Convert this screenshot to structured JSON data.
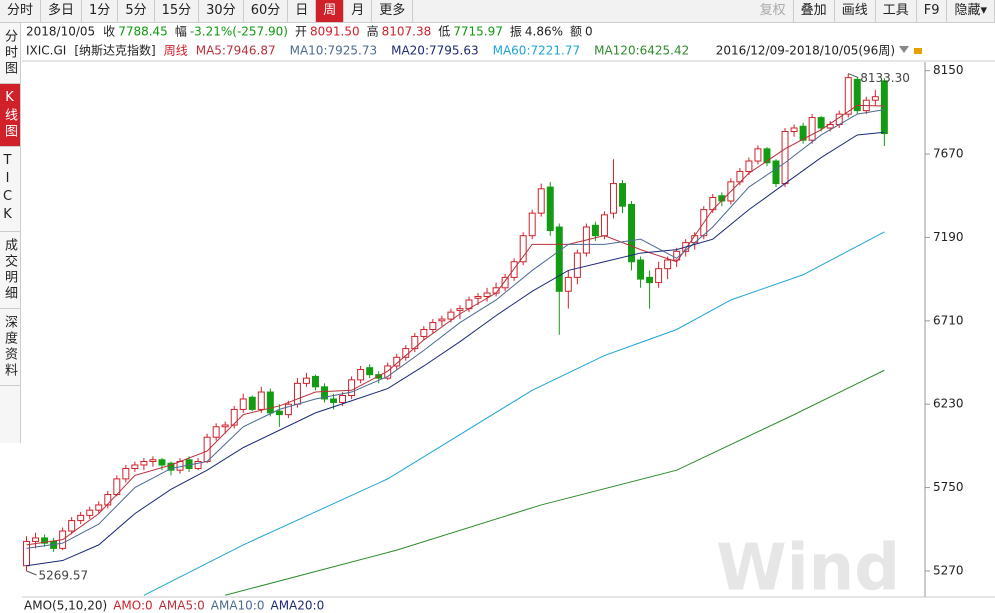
{
  "toolbar": {
    "left": [
      "分时",
      "多日",
      "1分",
      "5分",
      "15分",
      "30分",
      "60分",
      "日",
      "周",
      "月",
      "更多"
    ],
    "active": 8,
    "right": [
      "复权",
      "叠加",
      "画线",
      "工具",
      "F9",
      "隐藏▾"
    ],
    "disabled": 0
  },
  "sidebar": {
    "items": [
      "分时图",
      "K线图",
      "TICK",
      "成交明细",
      "深度资料"
    ],
    "active": 1
  },
  "quote": {
    "date": "2018/10/05",
    "items": [
      {
        "label": "收",
        "value": "7788.45",
        "color": "#0e9a0e"
      },
      {
        "label": "幅",
        "value": "-3.21%(-257.90)",
        "color": "#0e9a0e"
      },
      {
        "label": "开",
        "value": "8091.50",
        "color": "#d0202a"
      },
      {
        "label": "高",
        "value": "8107.38",
        "color": "#d0202a"
      },
      {
        "label": "低",
        "value": "7715.97",
        "color": "#0e9a0e"
      },
      {
        "label": "振",
        "value": "4.86%",
        "color": "#222222"
      },
      {
        "label": "额",
        "value": "0",
        "color": "#222222"
      }
    ]
  },
  "chart_data": {
    "type": "candlestick",
    "symbol": "IXIC.GI",
    "name": "[纳斯达克指数]",
    "period": "周线",
    "range": "2016/12/09-2018/10/05(96周)",
    "up_color": "#d0202a",
    "down_color": "#139c13",
    "xlim": [
      -0.5,
      99.5
    ],
    "ylim": [
      5120,
      8200
    ],
    "yticks": [
      8150,
      7670,
      7190,
      6710,
      6230,
      5750,
      5270
    ],
    "ohlc": [
      [
        5300,
        5470,
        5269.57,
        5440
      ],
      [
        5440,
        5490,
        5400,
        5460
      ],
      [
        5460,
        5480,
        5410,
        5430
      ],
      [
        5440,
        5460,
        5380,
        5400
      ],
      [
        5400,
        5520,
        5390,
        5500
      ],
      [
        5500,
        5580,
        5480,
        5560
      ],
      [
        5560,
        5610,
        5540,
        5590
      ],
      [
        5590,
        5640,
        5570,
        5620
      ],
      [
        5620,
        5670,
        5600,
        5650
      ],
      [
        5650,
        5730,
        5630,
        5710
      ],
      [
        5710,
        5820,
        5700,
        5800
      ],
      [
        5800,
        5880,
        5780,
        5860
      ],
      [
        5860,
        5900,
        5840,
        5880
      ],
      [
        5880,
        5920,
        5850,
        5900
      ],
      [
        5900,
        5930,
        5870,
        5910
      ],
      [
        5910,
        5920,
        5850,
        5880
      ],
      [
        5890,
        5900,
        5820,
        5850
      ],
      [
        5850,
        5920,
        5830,
        5900
      ],
      [
        5910,
        5930,
        5840,
        5860
      ],
      [
        5860,
        5920,
        5850,
        5900
      ],
      [
        5900,
        6060,
        5890,
        6040
      ],
      [
        6040,
        6120,
        6020,
        6100
      ],
      [
        6100,
        6130,
        6060,
        6110
      ],
      [
        6110,
        6220,
        6090,
        6200
      ],
      [
        6200,
        6290,
        6180,
        6260
      ],
      [
        6270,
        6280,
        6190,
        6200
      ],
      [
        6200,
        6330,
        6180,
        6300
      ],
      [
        6300,
        6320,
        6160,
        6180
      ],
      [
        6190,
        6230,
        6100,
        6170
      ],
      [
        6170,
        6250,
        6150,
        6230
      ],
      [
        6230,
        6380,
        6210,
        6350
      ],
      [
        6350,
        6410,
        6330,
        6380
      ],
      [
        6390,
        6400,
        6310,
        6330
      ],
      [
        6330,
        6350,
        6240,
        6260
      ],
      [
        6260,
        6290,
        6200,
        6240
      ],
      [
        6240,
        6300,
        6220,
        6280
      ],
      [
        6280,
        6390,
        6260,
        6370
      ],
      [
        6370,
        6450,
        6350,
        6430
      ],
      [
        6440,
        6460,
        6380,
        6400
      ],
      [
        6400,
        6420,
        6350,
        6380
      ],
      [
        6380,
        6470,
        6370,
        6450
      ],
      [
        6450,
        6520,
        6430,
        6500
      ],
      [
        6500,
        6570,
        6480,
        6550
      ],
      [
        6550,
        6640,
        6530,
        6620
      ],
      [
        6620,
        6680,
        6600,
        6660
      ],
      [
        6660,
        6720,
        6640,
        6700
      ],
      [
        6710,
        6740,
        6680,
        6720
      ],
      [
        6720,
        6780,
        6700,
        6760
      ],
      [
        6770,
        6800,
        6720,
        6780
      ],
      [
        6780,
        6850,
        6760,
        6830
      ],
      [
        6840,
        6870,
        6800,
        6850
      ],
      [
        6850,
        6900,
        6820,
        6870
      ],
      [
        6870,
        6930,
        6850,
        6900
      ],
      [
        6900,
        6980,
        6880,
        6960
      ],
      [
        6960,
        7070,
        6940,
        7050
      ],
      [
        7050,
        7220,
        7030,
        7200
      ],
      [
        7200,
        7350,
        7180,
        7330
      ],
      [
        7330,
        7500,
        7310,
        7470
      ],
      [
        7480,
        7510,
        7200,
        7230
      ],
      [
        7250,
        7270,
        6630,
        6880
      ],
      [
        6880,
        7000,
        6780,
        6960
      ],
      [
        6960,
        7120,
        6920,
        7100
      ],
      [
        7100,
        7270,
        7080,
        7250
      ],
      [
        7260,
        7280,
        7170,
        7200
      ],
      [
        7200,
        7340,
        7180,
        7320
      ],
      [
        7330,
        7640,
        7300,
        7500
      ],
      [
        7500,
        7520,
        7330,
        7370
      ],
      [
        7380,
        7400,
        7000,
        7050
      ],
      [
        7060,
        7080,
        6900,
        6950
      ],
      [
        6960,
        7000,
        6780,
        6930
      ],
      [
        6930,
        7050,
        6900,
        7010
      ],
      [
        7010,
        7080,
        6950,
        7060
      ],
      [
        7060,
        7130,
        7020,
        7110
      ],
      [
        7110,
        7180,
        7080,
        7160
      ],
      [
        7160,
        7220,
        7120,
        7200
      ],
      [
        7200,
        7370,
        7180,
        7350
      ],
      [
        7350,
        7440,
        7330,
        7420
      ],
      [
        7430,
        7450,
        7370,
        7400
      ],
      [
        7400,
        7530,
        7380,
        7510
      ],
      [
        7510,
        7590,
        7490,
        7570
      ],
      [
        7570,
        7650,
        7550,
        7630
      ],
      [
        7630,
        7720,
        7610,
        7700
      ],
      [
        7700,
        7710,
        7600,
        7620
      ],
      [
        7630,
        7640,
        7480,
        7500
      ],
      [
        7500,
        7820,
        7480,
        7800
      ],
      [
        7800,
        7840,
        7770,
        7820
      ],
      [
        7830,
        7850,
        7730,
        7750
      ],
      [
        7750,
        7900,
        7730,
        7880
      ],
      [
        7880,
        7890,
        7800,
        7820
      ],
      [
        7820,
        7860,
        7800,
        7840
      ],
      [
        7840,
        7920,
        7820,
        7900
      ],
      [
        7900,
        8133.3,
        7880,
        8110
      ],
      [
        8100,
        8110,
        7900,
        7920
      ],
      [
        7920,
        8000,
        7900,
        7980
      ],
      [
        7980,
        8040,
        7950,
        8000
      ],
      [
        8091.5,
        8107.38,
        7715.97,
        7788.45
      ]
    ],
    "series": [
      {
        "name": "MA5",
        "label": "MA5:7946.87",
        "color": "#b8303c",
        "x": [
          0,
          4,
          8,
          12,
          16,
          20,
          24,
          28,
          32,
          36,
          40,
          44,
          48,
          52,
          56,
          60,
          64,
          68,
          72,
          76,
          80,
          84,
          88,
          92,
          95
        ],
        "values": [
          5420,
          5450,
          5600,
          5820,
          5880,
          5960,
          6170,
          6220,
          6300,
          6310,
          6420,
          6600,
          6750,
          6870,
          7150,
          7150,
          7200,
          7120,
          7050,
          7350,
          7560,
          7700,
          7810,
          7950,
          7946.87
        ]
      },
      {
        "name": "MA10",
        "label": "MA10:7925.73",
        "color": "#4d6a94",
        "x": [
          0,
          4,
          8,
          12,
          16,
          20,
          24,
          28,
          32,
          36,
          40,
          44,
          48,
          52,
          56,
          60,
          64,
          68,
          72,
          76,
          80,
          84,
          88,
          92,
          95
        ],
        "values": [
          5400,
          5430,
          5540,
          5750,
          5860,
          5900,
          6100,
          6200,
          6260,
          6300,
          6390,
          6540,
          6700,
          6830,
          7000,
          7150,
          7150,
          7180,
          7070,
          7250,
          7480,
          7620,
          7780,
          7900,
          7925.73
        ]
      },
      {
        "name": "MA20",
        "label": "MA20:7795.63",
        "color": "#1c2a78",
        "x": [
          0,
          4,
          8,
          12,
          16,
          20,
          24,
          28,
          32,
          36,
          40,
          44,
          48,
          52,
          56,
          60,
          64,
          68,
          72,
          76,
          80,
          84,
          88,
          92,
          95
        ],
        "values": [
          5300,
          5330,
          5420,
          5600,
          5740,
          5850,
          5980,
          6080,
          6180,
          6250,
          6320,
          6450,
          6590,
          6740,
          6880,
          7000,
          7050,
          7100,
          7120,
          7180,
          7350,
          7500,
          7650,
          7780,
          7795.63
        ]
      },
      {
        "name": "MA60",
        "label": "MA60:7221.77",
        "color": "#1ea5d6",
        "x": [
          13,
          24,
          40,
          56,
          64,
          72,
          78,
          86,
          95
        ],
        "values": [
          5130,
          5420,
          5800,
          6310,
          6510,
          6660,
          6830,
          6975,
          7221.77
        ]
      },
      {
        "name": "MA120",
        "label": "MA120:6425.42",
        "color": "#2e8b2e",
        "x": [
          22,
          41,
          57,
          72,
          85,
          95
        ],
        "values": [
          5130,
          5390,
          5650,
          5850,
          6170,
          6425.42
        ]
      }
    ],
    "annotations": [
      {
        "text": "8133.30",
        "index": 91,
        "value": 8133.3
      },
      {
        "text": "5269.57",
        "index": 0,
        "value": 5269.57
      }
    ],
    "watermark": "Wind"
  },
  "bottom": {
    "items": [
      {
        "text": "AMO(5,10,20)",
        "color": "#222222"
      },
      {
        "text": "AMO:0",
        "color": "#d0202a"
      },
      {
        "text": "AMA5:0",
        "color": "#b8303c"
      },
      {
        "text": "AMA10:0",
        "color": "#4d6a94"
      },
      {
        "text": "AMA20:0",
        "color": "#1c2a78"
      }
    ]
  }
}
